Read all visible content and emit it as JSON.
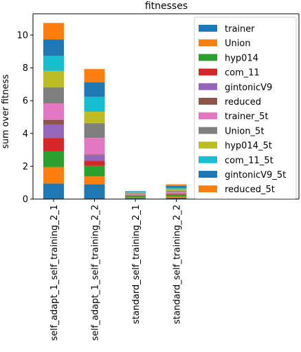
{
  "chart_data": {
    "type": "bar",
    "stacked": true,
    "title": "fitnesses",
    "xlabel": "",
    "ylabel": "sum over fitness",
    "ylim": [
      0,
      11.3
    ],
    "yticks": [
      0,
      2,
      4,
      6,
      8,
      10
    ],
    "ytick_labels": [
      "0",
      "2",
      "4",
      "6",
      "8",
      "10"
    ],
    "grid": false,
    "legend_position": "top-right",
    "categories": [
      "self_adapt_1_self_training_2_1",
      "self_adapt_1_self_training_2_2",
      "standard_self_training_2_1",
      "standard_self_training_2_2"
    ],
    "series": [
      {
        "name": "trainer",
        "color": "#1f77b4",
        "values": [
          0.95,
          0.9,
          0.06,
          0.09
        ]
      },
      {
        "name": "Union",
        "color": "#ff7f0e",
        "values": [
          1.0,
          0.48,
          0.04,
          0.06
        ]
      },
      {
        "name": "hyp014",
        "color": "#2ca02c",
        "values": [
          0.97,
          0.65,
          0.1,
          0.12
        ]
      },
      {
        "name": "com_11",
        "color": "#d62728",
        "values": [
          0.8,
          0.3,
          0.02,
          0.03
        ]
      },
      {
        "name": "gintonicV9",
        "color": "#9467bd",
        "values": [
          0.82,
          0.35,
          0.03,
          0.04
        ]
      },
      {
        "name": "reduced",
        "color": "#8c564b",
        "values": [
          0.3,
          0.03,
          0.01,
          0.02
        ]
      },
      {
        "name": "trainer_5t",
        "color": "#e377c2",
        "values": [
          1.0,
          1.02,
          0.06,
          0.09
        ]
      },
      {
        "name": "Union_5t",
        "color": "#7f7f7f",
        "values": [
          0.98,
          0.9,
          0.04,
          0.06
        ]
      },
      {
        "name": "hyp014_5t",
        "color": "#bcbd22",
        "values": [
          1.0,
          0.7,
          0.05,
          0.1
        ]
      },
      {
        "name": "com_11_5t",
        "color": "#17becf",
        "values": [
          0.92,
          0.9,
          0.03,
          0.08
        ]
      },
      {
        "name": "gintonicV9_5t",
        "color": "#1f77b4",
        "values": [
          1.0,
          0.9,
          0.03,
          0.12
        ]
      },
      {
        "name": "reduced_5t",
        "color": "#ff7f0e",
        "values": [
          1.0,
          0.8,
          0.02,
          0.09
        ]
      }
    ]
  }
}
